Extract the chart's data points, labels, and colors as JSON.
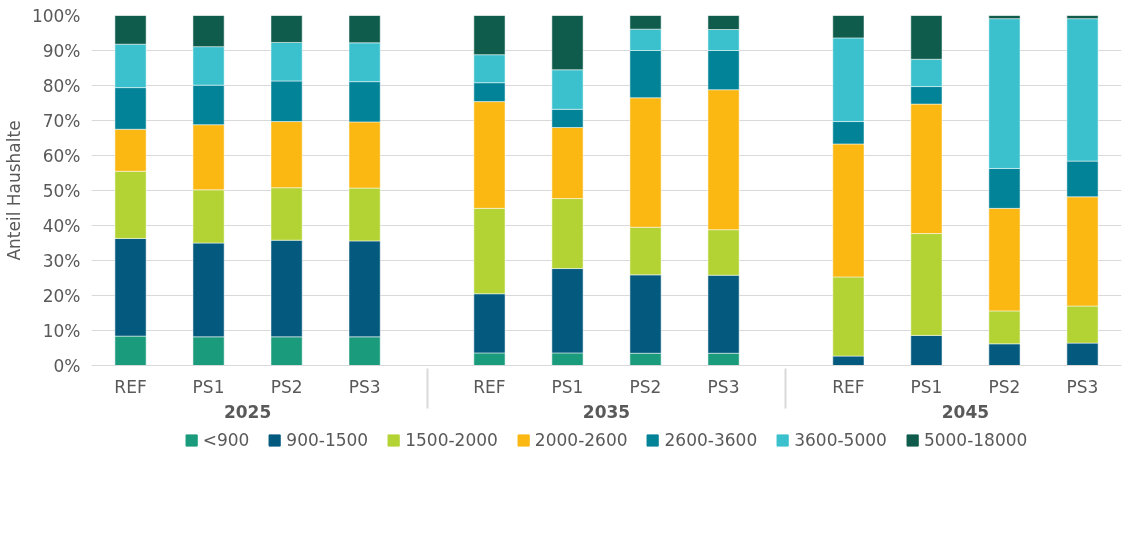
{
  "chart_data": {
    "type": "bar",
    "stacked": true,
    "ylabel": "Anteil Haushalte",
    "categories": [
      "REF",
      "PS1",
      "PS2",
      "PS3",
      "REF",
      "PS1",
      "PS2",
      "PS3",
      "REF",
      "PS1",
      "PS2",
      "PS3"
    ],
    "annotations": [
      "2025",
      "2035",
      "2045"
    ],
    "ylim": [
      0,
      100
    ],
    "yticks": [
      {
        "value": 0,
        "label": "0%"
      },
      {
        "value": 10,
        "label": "10%"
      },
      {
        "value": 20,
        "label": "20%"
      },
      {
        "value": 30,
        "label": "30%"
      },
      {
        "value": 40,
        "label": "40%"
      },
      {
        "value": 50,
        "label": "50%"
      },
      {
        "value": 60,
        "label": "60%"
      },
      {
        "value": 70,
        "label": "70%"
      },
      {
        "value": 80,
        "label": "80%"
      },
      {
        "value": 90,
        "label": "90%"
      },
      {
        "value": 100,
        "label": "100%"
      }
    ],
    "grid": "y",
    "legend": "bottom",
    "series": [
      {
        "name": "<900",
        "color": "#1a9b7c",
        "values": [
          8.4,
          8.2,
          8.2,
          8.2,
          3.6,
          3.6,
          3.5,
          3.5,
          0,
          0,
          0,
          0
        ]
      },
      {
        "name": "900-1500",
        "color": "#035a7e",
        "values": [
          27.9,
          26.8,
          27.6,
          27.4,
          16.9,
          24.1,
          22.4,
          22.3,
          2.7,
          8.6,
          6.2,
          6.4
        ]
      },
      {
        "name": "1500-2000",
        "color": "#b3d335",
        "values": [
          19.2,
          15.2,
          15.0,
          15.1,
          24.4,
          20.0,
          13.6,
          13.0,
          22.6,
          29.1,
          9.4,
          10.6
        ]
      },
      {
        "name": "2000-2600",
        "color": "#fbb813",
        "values": [
          12.0,
          18.6,
          18.9,
          18.9,
          30.5,
          20.3,
          37.0,
          40.0,
          38.0,
          37.0,
          29.3,
          31.2
        ]
      },
      {
        "name": "2600-3600",
        "color": "#028397",
        "values": [
          11.9,
          11.3,
          11.6,
          11.5,
          5.4,
          5.2,
          13.5,
          11.2,
          6.4,
          5.0,
          11.4,
          10.2
        ]
      },
      {
        "name": "3600-5000",
        "color": "#3bc1cd",
        "values": [
          12.4,
          11.0,
          11.0,
          11.1,
          8.0,
          11.3,
          6.1,
          6.0,
          23.9,
          7.8,
          42.8,
          40.7
        ]
      },
      {
        "name": "5000-18000",
        "color": "#0f5c4c",
        "values": [
          8.2,
          8.9,
          7.7,
          7.8,
          11.2,
          15.5,
          3.9,
          4.0,
          6.4,
          12.5,
          0.9,
          0.9
        ]
      }
    ]
  }
}
